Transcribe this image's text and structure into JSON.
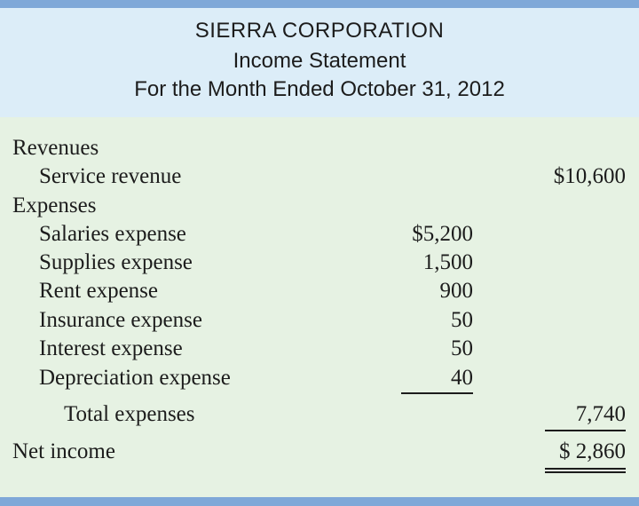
{
  "header": {
    "company": "SIERRA CORPORATION",
    "statement": "Income Statement",
    "period": "For the Month Ended October 31, 2012"
  },
  "statement": {
    "revenues_heading": "Revenues",
    "service_revenue_label": "Service revenue",
    "service_revenue_amount": "$10,600",
    "expenses_heading": "Expenses",
    "expenses": [
      {
        "label": "Salaries expense",
        "amount": "$5,200"
      },
      {
        "label": "Supplies expense",
        "amount": "1,500"
      },
      {
        "label": "Rent expense",
        "amount": "900"
      },
      {
        "label": "Insurance expense",
        "amount": "50"
      },
      {
        "label": "Interest expense",
        "amount": "50"
      },
      {
        "label": "Depreciation expense",
        "amount": "40"
      }
    ],
    "total_expenses_label": "Total expenses",
    "total_expenses_amount": "7,740",
    "net_income_label": "Net income",
    "net_income_amount": "$ 2,860"
  },
  "colors": {
    "border_blue": "#7fa8d8",
    "header_bg": "#dcedf8",
    "body_bg": "#e6f2e3",
    "text": "#1c1c1c"
  }
}
